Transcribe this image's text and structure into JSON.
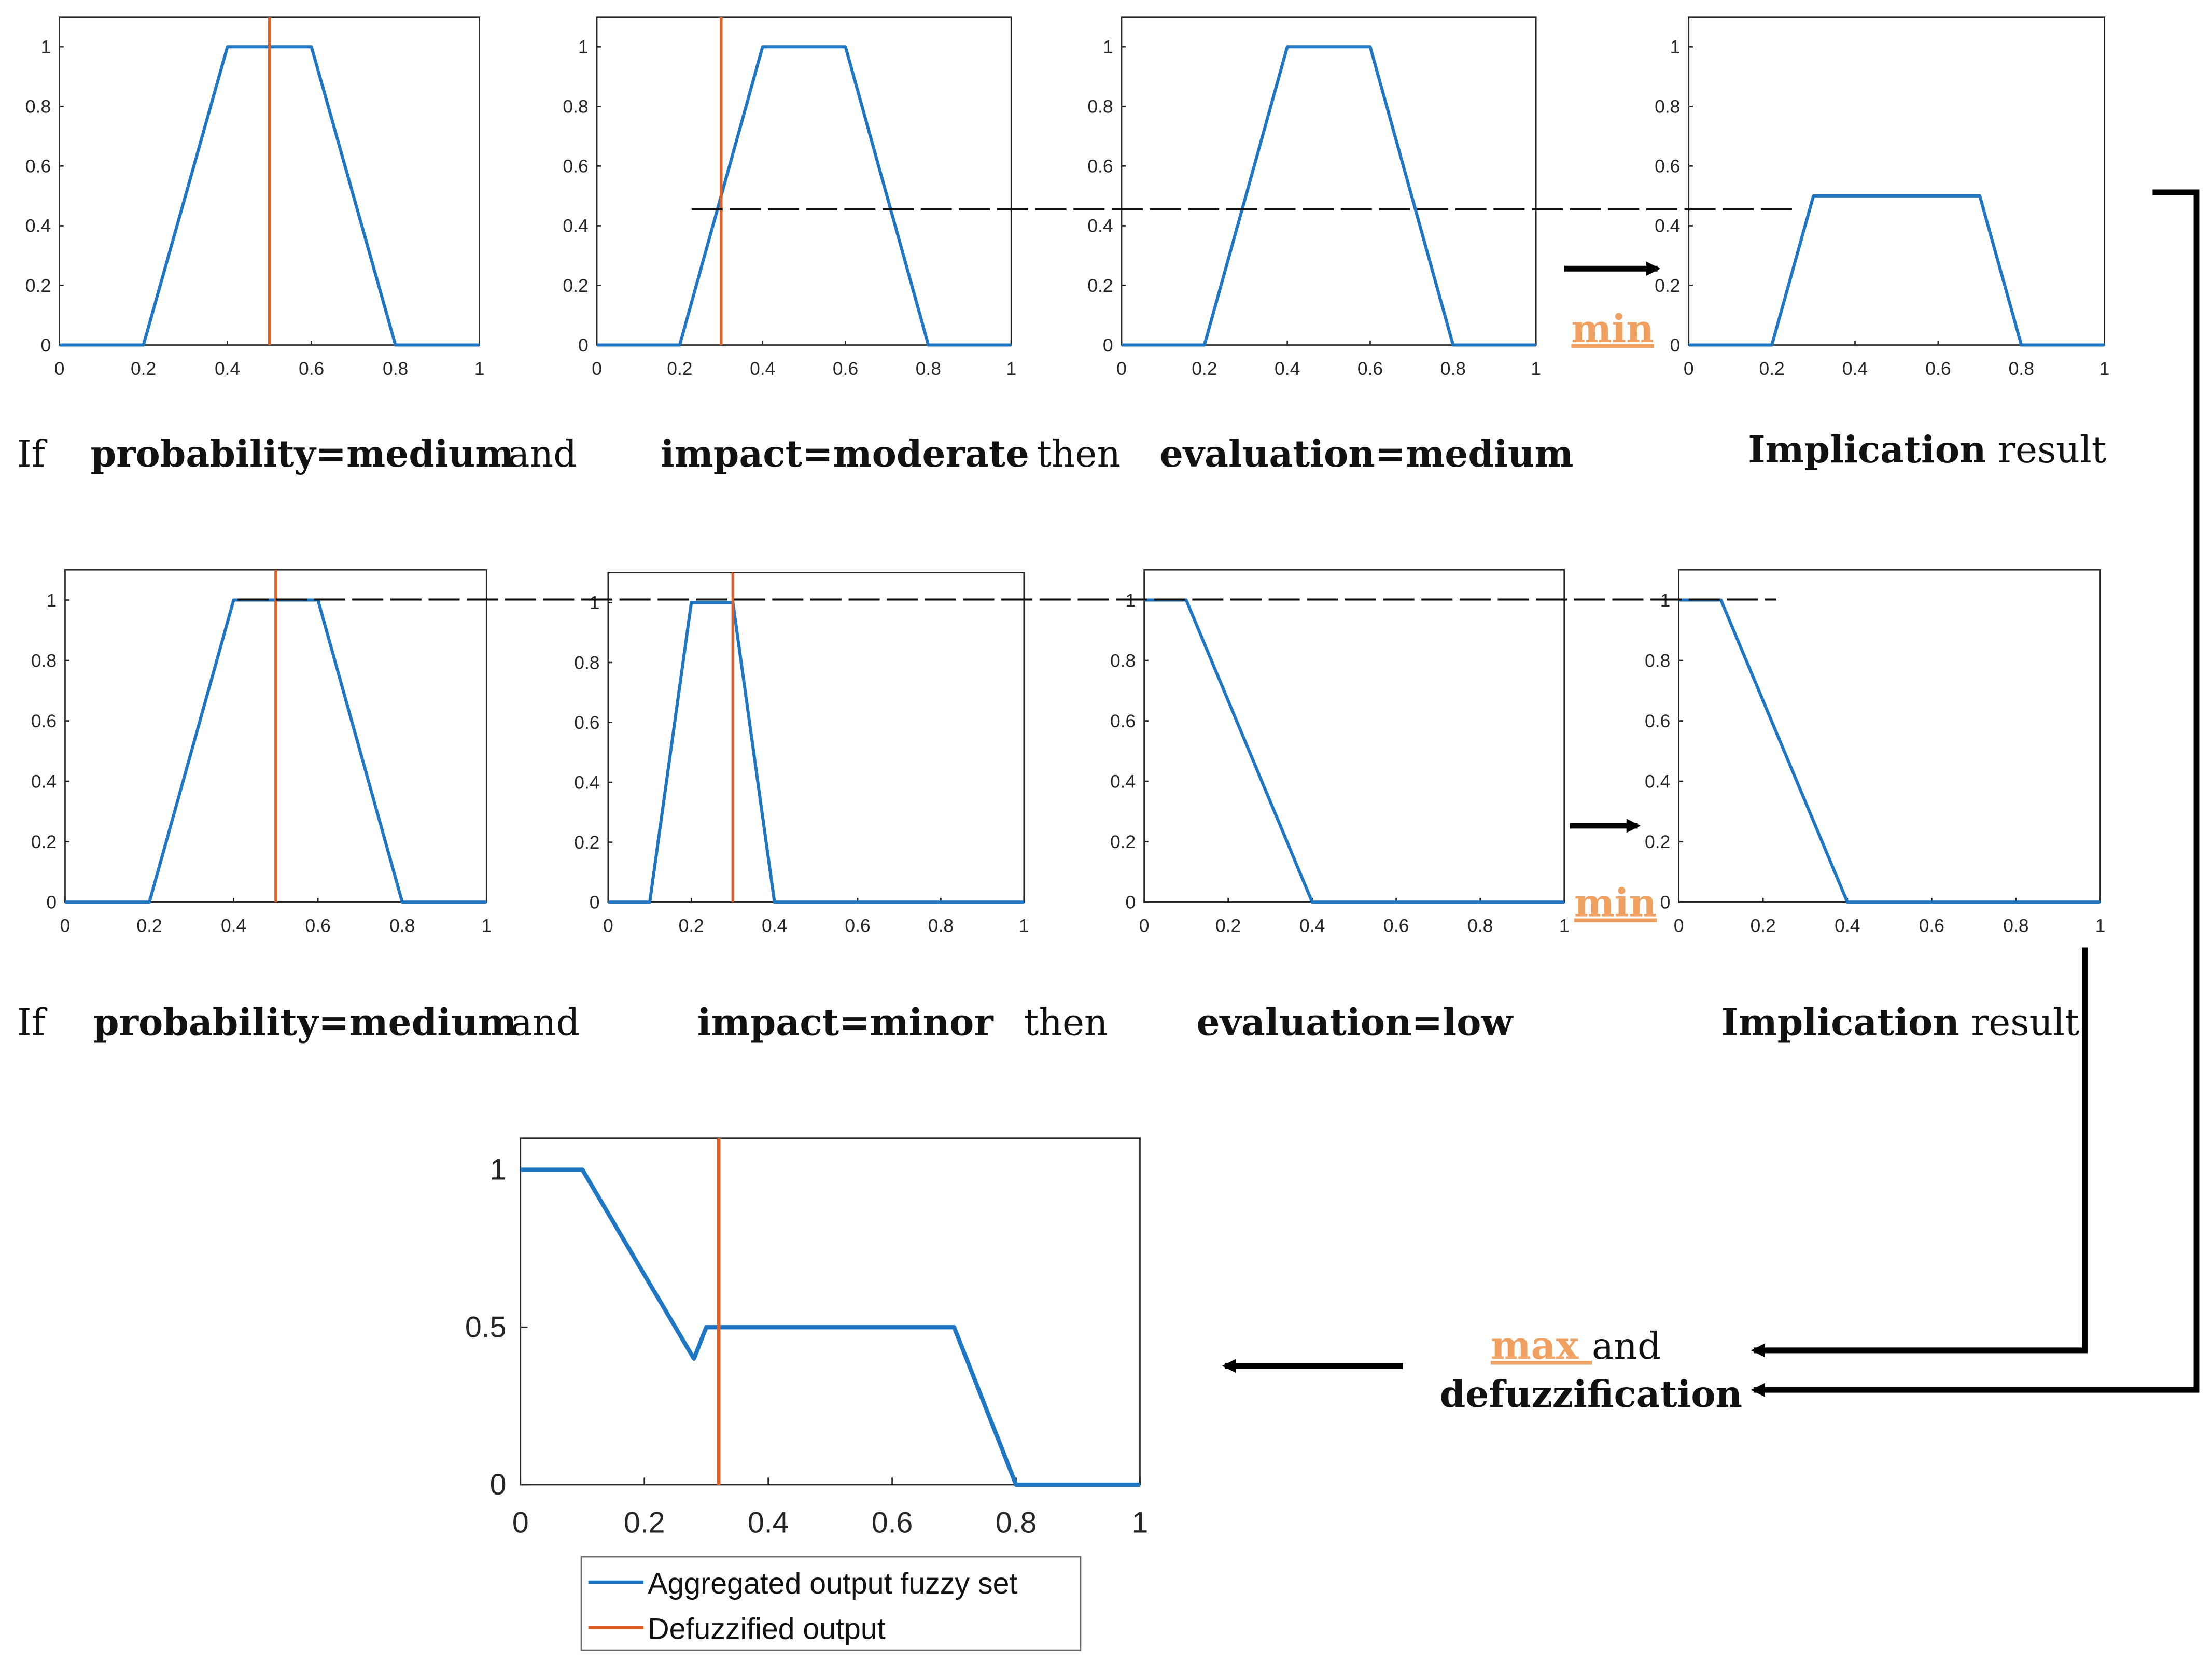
{
  "rules": [
    {
      "if_word": "If",
      "antecedent1": "probability=medium",
      "and_word": "and",
      "antecedent2": "impact=moderate",
      "then_word": "then",
      "consequent": "evaluation=medium",
      "result_bold": "Implication",
      "result_rest": " result",
      "operator": "min"
    },
    {
      "if_word": "If",
      "antecedent1": "probability=medium",
      "and_word": "and",
      "antecedent2": "impact=minor",
      "then_word": "then",
      "consequent": "evaluation=low",
      "result_bold": "Implication",
      "result_rest": " result",
      "operator": "min"
    }
  ],
  "aggregation": {
    "operator": "max ",
    "and_word": "and",
    "second_line": "defuzzification"
  },
  "colors": {
    "membership": "#1f77c4",
    "input_marker": "#e0602a",
    "operator_text": "#f0a060",
    "axes": "#262626"
  },
  "chart_data": [
    {
      "id": "r1-probability",
      "type": "line",
      "x": [
        0,
        0.2,
        0.4,
        0.6,
        0.8,
        1
      ],
      "y": [
        0,
        0,
        1,
        1,
        0,
        0
      ],
      "marker_x": 0.5,
      "alpha_cut": 0.46,
      "xlim": [
        0,
        1
      ],
      "ylim": [
        0,
        1.1
      ],
      "xticks": [
        "0",
        "0.2",
        "0.4",
        "0.6",
        "0.8",
        "1"
      ],
      "yticks": [
        "0",
        "0.2",
        "0.4",
        "0.6",
        "0.8",
        "1"
      ]
    },
    {
      "id": "r1-impact",
      "type": "line",
      "x": [
        0,
        0.2,
        0.4,
        0.6,
        0.8,
        1
      ],
      "y": [
        0,
        0,
        1,
        1,
        0,
        0
      ],
      "marker_x": 0.3,
      "alpha_cut": 0.46,
      "xlim": [
        0,
        1
      ],
      "ylim": [
        0,
        1.1
      ],
      "xticks": [
        "0",
        "0.2",
        "0.4",
        "0.6",
        "0.8",
        "1"
      ],
      "yticks": [
        "0",
        "0.2",
        "0.4",
        "0.6",
        "0.8",
        "1"
      ]
    },
    {
      "id": "r1-evaluation",
      "type": "line",
      "x": [
        0,
        0.2,
        0.4,
        0.6,
        0.8,
        1
      ],
      "y": [
        0,
        0,
        1,
        1,
        0,
        0
      ],
      "alpha_cut": 0.46,
      "xlim": [
        0,
        1
      ],
      "ylim": [
        0,
        1.1
      ],
      "xticks": [
        "0",
        "0.2",
        "0.4",
        "0.6",
        "0.8",
        "1"
      ],
      "yticks": [
        "0",
        "0.2",
        "0.4",
        "0.6",
        "0.8",
        "1"
      ]
    },
    {
      "id": "r1-implication",
      "type": "line",
      "x": [
        0,
        0.2,
        0.3,
        0.7,
        0.8,
        1
      ],
      "y": [
        0,
        0,
        0.5,
        0.5,
        0,
        0
      ],
      "xlim": [
        0,
        1
      ],
      "ylim": [
        0,
        1.1
      ],
      "xticks": [
        "0",
        "0.2",
        "0.4",
        "0.6",
        "0.8",
        "1"
      ],
      "yticks": [
        "0",
        "0.2",
        "0.4",
        "0.6",
        "0.8",
        "1"
      ]
    },
    {
      "id": "r2-probability",
      "type": "line",
      "x": [
        0,
        0.2,
        0.4,
        0.6,
        0.8,
        1
      ],
      "y": [
        0,
        0,
        1,
        1,
        0,
        0
      ],
      "marker_x": 0.5,
      "alpha_cut": 1,
      "xlim": [
        0,
        1
      ],
      "ylim": [
        0,
        1.1
      ],
      "xticks": [
        "0",
        "0.2",
        "0.4",
        "0.6",
        "0.8",
        "1"
      ],
      "yticks": [
        "0",
        "0.2",
        "0.4",
        "0.6",
        "0.8",
        "1"
      ]
    },
    {
      "id": "r2-impact",
      "type": "line",
      "x": [
        0,
        0.1,
        0.2,
        0.3,
        0.4,
        1
      ],
      "y": [
        0,
        0,
        1,
        1,
        0,
        0
      ],
      "marker_x": 0.3,
      "alpha_cut": 1,
      "xlim": [
        0,
        1
      ],
      "ylim": [
        0,
        1.1
      ],
      "xticks": [
        "0",
        "0.2",
        "0.4",
        "0.6",
        "0.8",
        "1"
      ],
      "yticks": [
        "0",
        "0.2",
        "0.4",
        "0.6",
        "0.8",
        "1"
      ]
    },
    {
      "id": "r2-evaluation",
      "type": "line",
      "x": [
        0,
        0.1,
        0.4,
        1
      ],
      "y": [
        1,
        1,
        0,
        0
      ],
      "alpha_cut": 1,
      "xlim": [
        0,
        1
      ],
      "ylim": [
        0,
        1.1
      ],
      "xticks": [
        "0",
        "0.2",
        "0.4",
        "0.6",
        "0.8",
        "1"
      ],
      "yticks": [
        "0",
        "0.2",
        "0.4",
        "0.6",
        "0.8",
        "1"
      ]
    },
    {
      "id": "r2-implication",
      "type": "line",
      "x": [
        0,
        0.1,
        0.4,
        1
      ],
      "y": [
        1,
        1,
        0,
        0
      ],
      "xlim": [
        0,
        1
      ],
      "ylim": [
        0,
        1.1
      ],
      "xticks": [
        "0",
        "0.2",
        "0.4",
        "0.6",
        "0.8",
        "1"
      ],
      "yticks": [
        "0",
        "0.2",
        "0.4",
        "0.6",
        "0.8",
        "1"
      ]
    },
    {
      "id": "aggregated",
      "type": "line",
      "x": [
        0,
        0.1,
        0.28,
        0.3,
        0.7,
        0.8,
        1
      ],
      "y": [
        1,
        1,
        0.4,
        0.5,
        0.5,
        0,
        0
      ],
      "marker_x": 0.32,
      "xlim": [
        0,
        1
      ],
      "ylim": [
        0,
        1.1
      ],
      "xticks": [
        "0",
        "0.2",
        "0.4",
        "0.6",
        "0.8",
        "1"
      ],
      "yticks": [
        "0",
        "0.5",
        "1"
      ],
      "legend": [
        "Aggregated output fuzzy set",
        "Defuzzified output"
      ],
      "legend_position": "below"
    }
  ]
}
